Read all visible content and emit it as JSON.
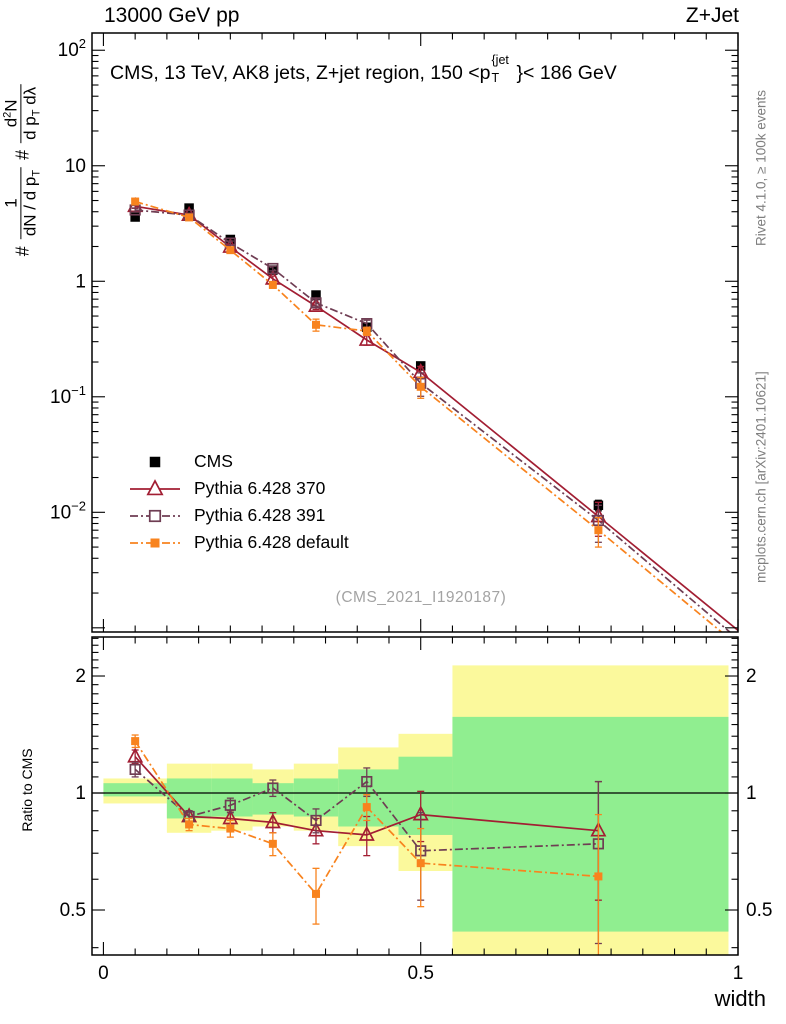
{
  "header": {
    "left": "13000 GeV pp",
    "right": "Z+Jet"
  },
  "watermark": "(CMS_2021_I1920187)",
  "credits": {
    "top": "Rivet 4.1.0, ≥ 100k events",
    "bottom": "mcplots.cern.ch [arXiv:2401.10621]"
  },
  "chart_data": {
    "type": "line",
    "title": {
      "prefix": "CMS, 13 TeV, AK8 jets, Z+jet region, 150 <p",
      "sup": "{jet",
      "sub": "T",
      "suffix": "}< 186 GeV"
    },
    "xlabel": "width",
    "ratio_ylabel": "Ratio to CMS",
    "ylabel": {
      "hash1": "#",
      "f1num": "1",
      "f1den": "dN / d p",
      "f1den_sub": "T",
      "hash2": "#",
      "f2num": "d",
      "f2num_sup": "2",
      "f2num_tail": "N",
      "f2den": "d p",
      "f2den_sub": "T",
      "f2den_tail": " dλ"
    },
    "x": [
      0.05,
      0.135,
      0.2,
      0.267,
      0.335,
      0.415,
      0.5,
      0.78
    ],
    "x_ext": 1.0,
    "series": [
      {
        "id": "cms",
        "label": "CMS",
        "color": "#000000",
        "line": null,
        "marker": "square-filled",
        "msize": 9.5,
        "main": [
          3.6,
          4.3,
          2.3,
          1.25,
          0.76,
          0.4,
          0.185,
          0.0115
        ],
        "main_err": [
          0.1,
          0.12,
          0.07,
          0.04,
          0.025,
          0.015,
          0.008,
          0.0012
        ],
        "main_ext": null,
        "ratio": null,
        "ratio_err": null
      },
      {
        "id": "pythia-370",
        "label": "Pythia 6.428 370",
        "color": "#a21e33",
        "line": "solid",
        "marker": "triangle-open",
        "msize": 12,
        "main": [
          4.46,
          3.74,
          1.98,
          1.05,
          0.61,
          0.31,
          0.163,
          0.0092
        ],
        "main_err": [
          0.18,
          0.13,
          0.09,
          0.06,
          0.04,
          0.03,
          0.02,
          0.003
        ],
        "main_ext": 0.00095,
        "ratio": [
          1.24,
          0.87,
          0.86,
          0.84,
          0.8,
          0.78,
          0.88,
          0.8
        ],
        "ratio_err": [
          0.05,
          0.03,
          0.04,
          0.05,
          0.06,
          0.09,
          0.13,
          0.27
        ]
      },
      {
        "id": "pythia-391",
        "label": "Pythia 6.428 391",
        "color": "#6f3d53",
        "line": "dashdot",
        "marker": "square-open",
        "msize": 9.5,
        "main": [
          4.14,
          3.74,
          2.14,
          1.29,
          0.65,
          0.43,
          0.131,
          0.0085
        ],
        "main_err": [
          0.17,
          0.13,
          0.09,
          0.06,
          0.04,
          0.03,
          0.03,
          0.003
        ],
        "main_ext": 0.0008,
        "ratio": [
          1.15,
          0.87,
          0.93,
          1.03,
          0.85,
          1.07,
          0.71,
          0.74
        ],
        "ratio_err": [
          0.05,
          0.03,
          0.04,
          0.05,
          0.06,
          0.09,
          0.18,
          0.33
        ]
      },
      {
        "id": "pythia-default",
        "label": "Pythia 6.428 default",
        "color": "#f8831e",
        "line": "dashdot",
        "marker": "square-filled",
        "msize": 8,
        "main": [
          4.9,
          3.57,
          1.86,
          0.93,
          0.42,
          0.37,
          0.122,
          0.007
        ],
        "main_err": [
          0.17,
          0.13,
          0.09,
          0.06,
          0.05,
          0.03,
          0.025,
          0.002
        ],
        "main_ext": 0.0007,
        "ratio": [
          1.36,
          0.83,
          0.81,
          0.74,
          0.55,
          0.92,
          0.66,
          0.61
        ],
        "ratio_err": [
          0.05,
          0.03,
          0.04,
          0.05,
          0.09,
          0.07,
          0.15,
          0.27
        ]
      }
    ],
    "x_axis": {
      "lim": [
        -0.018,
        1.0
      ],
      "minor_step": 0.05,
      "majors": [
        {
          "v": 0,
          "label": "0"
        },
        {
          "v": 0.5,
          "label": "0.5"
        },
        {
          "v": 1,
          "label": "1"
        }
      ]
    },
    "main_axis": {
      "log": true,
      "lim": [
        0.00092,
        141
      ],
      "ticks": [
        {
          "v": 100,
          "base": "10",
          "exp": "2"
        },
        {
          "v": 10,
          "base": "10",
          "exp": ""
        },
        {
          "v": 1,
          "base": "1",
          "exp": ""
        },
        {
          "v": 0.1,
          "base": "10",
          "exp": "−1"
        },
        {
          "v": 0.01,
          "base": "10",
          "exp": "−2"
        },
        {
          "v": 0.001,
          "base": "",
          "exp": ""
        }
      ]
    },
    "ratio_axis": {
      "log": true,
      "lim": [
        0.383,
        2.52
      ],
      "ref": 1,
      "majors": [
        {
          "v": 0.5,
          "label": "0.5"
        },
        {
          "v": 1,
          "label": "1"
        },
        {
          "v": 2,
          "label": "2"
        }
      ],
      "minors": [
        0.4,
        0.6,
        0.7,
        0.8,
        0.9,
        1.1,
        1.2,
        1.3,
        1.4,
        1.5,
        1.6,
        1.7,
        1.8,
        1.9,
        2.1,
        2.2,
        2.3,
        2.4,
        2.5
      ]
    },
    "bands": {
      "edges": [
        0,
        0.1,
        0.17,
        0.235,
        0.3,
        0.37,
        0.465,
        0.55,
        0.985
      ],
      "yellow": [
        [
          0.94,
          1.09
        ],
        [
          0.79,
          1.19
        ],
        [
          0.8,
          1.19
        ],
        [
          0.82,
          1.15
        ],
        [
          0.8,
          1.19
        ],
        [
          0.73,
          1.31
        ],
        [
          0.63,
          1.42
        ],
        [
          0.3,
          2.13
        ]
      ],
      "green": [
        [
          0.98,
          1.06
        ],
        [
          0.86,
          1.09
        ],
        [
          0.87,
          1.09
        ],
        [
          0.88,
          1.06
        ],
        [
          0.87,
          1.09
        ],
        [
          0.82,
          1.15
        ],
        [
          0.78,
          1.24
        ],
        [
          0.44,
          1.57
        ]
      ],
      "yellow_color": "#fbf99c",
      "green_color": "#90ee90"
    }
  }
}
